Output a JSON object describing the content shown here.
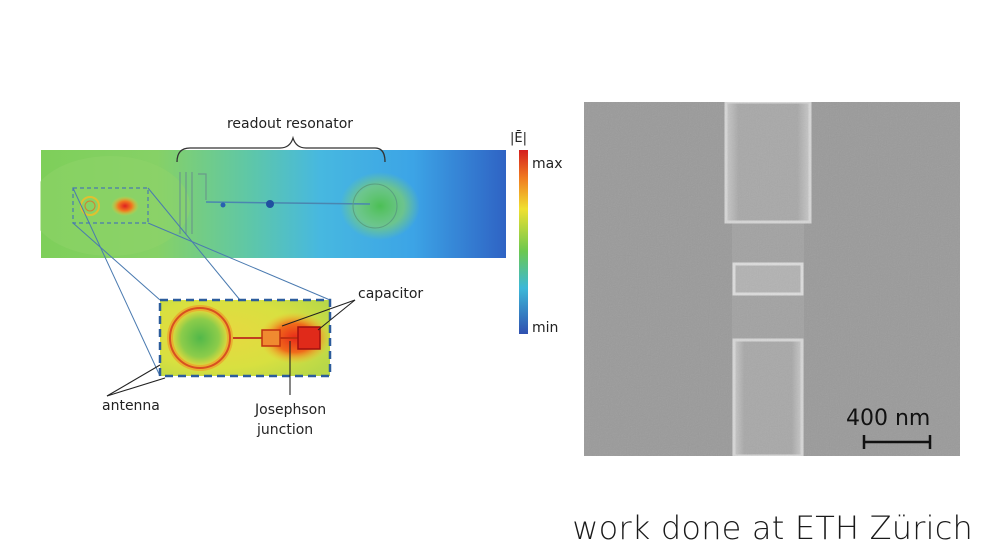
{
  "simulation": {
    "field_symbol": "|Ē|",
    "colorbar_max": "max",
    "colorbar_min": "min",
    "label_readout": "readout resonator",
    "label_capacitor": "capacitor",
    "label_antenna": "antenna",
    "label_junction_line1": "Josephson",
    "label_junction_line2": "junction"
  },
  "sem": {
    "scale_bar": "400 nm"
  },
  "footer": {
    "credit": "work done at ETH Zürich"
  }
}
